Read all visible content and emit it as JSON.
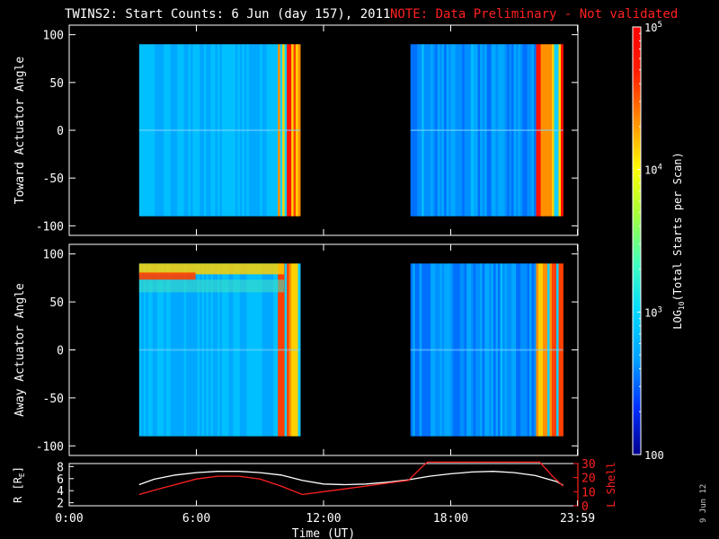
{
  "title": "TWINS2: Start Counts:  6 Jun (day 157), 2011",
  "note": "NOTE: Data Preliminary - Not validated",
  "date_stamp": "9 Jun 12",
  "chart_data": [
    {
      "type": "heatmap",
      "panel": "toward",
      "ylabel": "Toward Actuator Angle",
      "ylim": [
        -110,
        110
      ],
      "yticks": [
        100,
        50,
        0,
        -50,
        -100
      ],
      "xlim": [
        0,
        24
      ],
      "data_segments_hours": [
        [
          3.3,
          10.9
        ],
        [
          16.1,
          23.3
        ]
      ],
      "angle_range": [
        -90,
        90
      ]
    },
    {
      "type": "heatmap",
      "panel": "away",
      "ylabel": "Away Actuator Angle",
      "ylim": [
        -110,
        110
      ],
      "yticks": [
        100,
        50,
        0,
        -50,
        -100
      ],
      "xlim": [
        0,
        24
      ],
      "data_segments_hours": [
        [
          3.3,
          10.9
        ],
        [
          16.1,
          23.3
        ]
      ],
      "angle_range": [
        -90,
        90
      ]
    },
    {
      "type": "line",
      "panel": "orbit",
      "ylabel_left": "R [R",
      "ylabel_left_sub": "E",
      "ylabel_left_end": "]",
      "ylabel_right": "L Shell",
      "xlabel": "Time (UT)",
      "xtick_labels": [
        "0:00",
        "6:00",
        "12:00",
        "18:00",
        "23:59"
      ],
      "xticks_hours": [
        0,
        6,
        12,
        18,
        23.98
      ],
      "ylim_left": [
        1.5,
        8.5
      ],
      "yticks_left": [
        2,
        4,
        6,
        8
      ],
      "ylim_right": [
        0,
        30
      ],
      "yticks_right": [
        0,
        10,
        20,
        30
      ],
      "series": [
        {
          "color": "#ffffff",
          "axis": "left",
          "x": [
            3.3,
            4,
            5,
            6,
            7,
            8,
            9,
            10,
            11,
            12,
            13,
            14,
            15,
            16,
            17,
            18,
            19,
            20,
            21,
            22,
            23,
            23.3
          ],
          "y": [
            5.0,
            5.9,
            6.6,
            7.0,
            7.2,
            7.2,
            7.0,
            6.6,
            5.7,
            5.1,
            5.0,
            5.1,
            5.4,
            5.8,
            6.4,
            6.8,
            7.1,
            7.2,
            7.0,
            6.5,
            5.5,
            4.9
          ]
        },
        {
          "color": "#ff2020",
          "axis": "right",
          "x": [
            3.3,
            4,
            5,
            6,
            7,
            8,
            9,
            10,
            11,
            12,
            13,
            14,
            15,
            16,
            16.6,
            16.9,
            22.2,
            22.8,
            23.3
          ],
          "y": [
            8,
            11,
            15,
            19,
            21,
            21,
            19,
            14,
            8,
            10,
            12,
            14,
            16,
            18,
            27,
            31,
            31,
            21,
            14
          ]
        }
      ]
    }
  ],
  "colorbar": {
    "label": "LOG",
    "label_sub": "10",
    "label_end": "(Total Starts per Scan)",
    "ticks": [
      {
        "value": 100,
        "base": "100",
        "exp": ""
      },
      {
        "value": 1000,
        "base": "10",
        "exp": "3"
      },
      {
        "value": 10000,
        "base": "10",
        "exp": "4"
      },
      {
        "value": 100000,
        "base": "10",
        "exp": "5"
      }
    ],
    "range": [
      100,
      100000
    ],
    "colors": [
      "#00008c",
      "#0030ff",
      "#00a0ff",
      "#00d8ff",
      "#40ffc0",
      "#a0ff40",
      "#ffff00",
      "#ff9000",
      "#ff2000",
      "#ff0000"
    ]
  }
}
